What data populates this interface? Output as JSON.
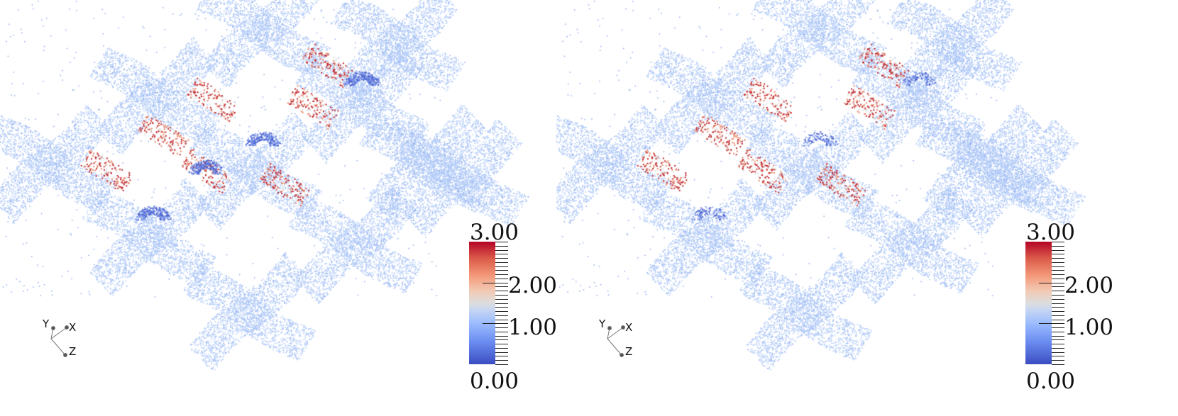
{
  "panels": [
    {
      "name": "left",
      "colorbar": {
        "max_label": "3.00",
        "mid_high_label": "2.00",
        "mid_low_label": "1.00",
        "min_label": "0.00",
        "range": [
          0,
          3
        ],
        "colormap": "coolwarm",
        "colors": {
          "low": "#3b4cc0",
          "mid": "#dddddd",
          "high": "#b40426"
        }
      },
      "axes": {
        "x": "X",
        "y": "Y",
        "z": "Z"
      }
    },
    {
      "name": "right",
      "colorbar": {
        "max_label": "3.00",
        "mid_high_label": "2.00",
        "mid_low_label": "1.00",
        "min_label": "0.00",
        "range": [
          0,
          3
        ],
        "colormap": "coolwarm",
        "colors": {
          "low": "#3b4cc0",
          "mid": "#dddddd",
          "high": "#b40426"
        }
      },
      "axes": {
        "x": "X",
        "y": "Y",
        "z": "Z"
      }
    }
  ]
}
